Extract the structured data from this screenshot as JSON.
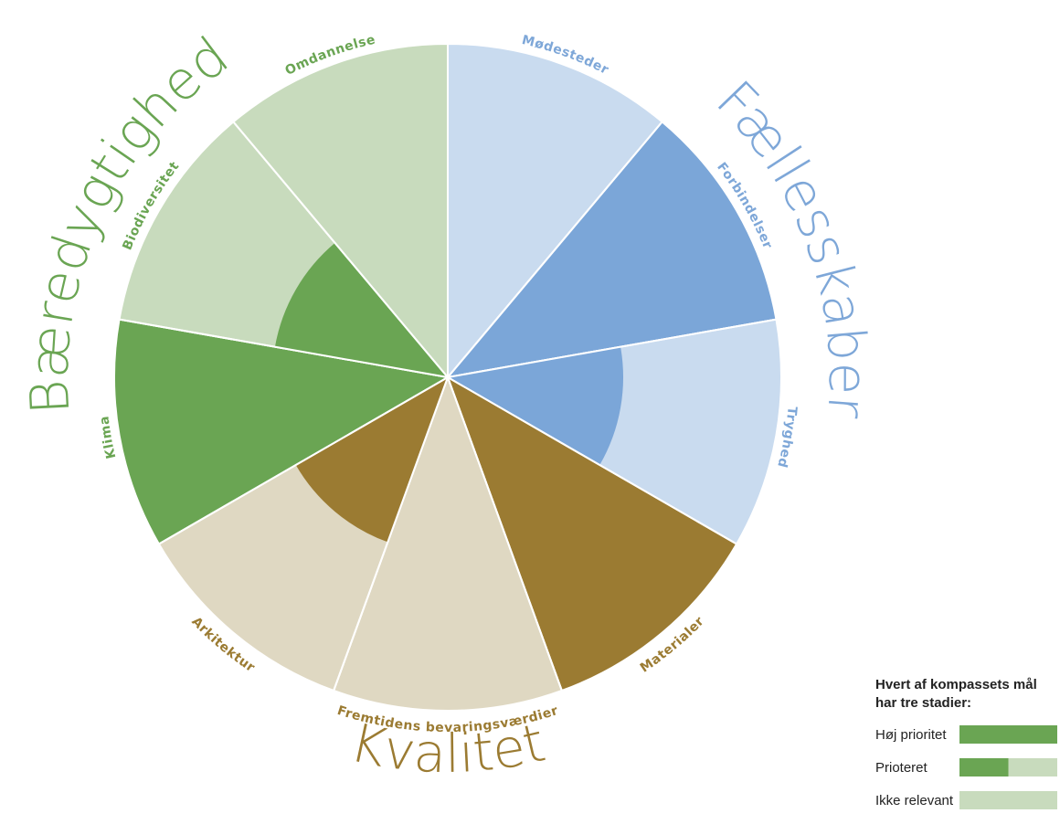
{
  "groups": [
    {
      "name": "Fællesskaber",
      "color": "#7ea7d8"
    },
    {
      "name": "Kvalitet",
      "color": "#9b7b32"
    },
    {
      "name": "Bæredygtighed",
      "color": "#6aa553"
    }
  ],
  "sectors": [
    {
      "label": "Mødesteder",
      "color": "#7ea7d8",
      "fill": "#c9dbef"
    },
    {
      "label": "Forbindelser",
      "color": "#7ea7d8",
      "fill": "#7ba6d8"
    },
    {
      "label": "Tryghed",
      "color": "#7ea7d8",
      "fill": "#c9dbef",
      "inner": "#7ba6d8"
    },
    {
      "label": "Materialer",
      "color": "#9b7b32",
      "fill": "#9b7b32"
    },
    {
      "label": "Fremtidens bevaringsværdier",
      "color": "#9b7b32",
      "fill": "#dfd8c2"
    },
    {
      "label": "Arkitektur",
      "color": "#9b7b32",
      "fill": "#dfd8c2",
      "inner": "#9b7b32"
    },
    {
      "label": "Klima",
      "color": "#6aa553",
      "fill": "#6aa553"
    },
    {
      "label": "Biodiversitet",
      "color": "#6aa553",
      "fill": "#c8dbbd",
      "inner": "#6aa553"
    },
    {
      "label": "Omdannelse",
      "color": "#6aa553",
      "fill": "#c8dbbd"
    }
  ],
  "legend": {
    "title": "Hvert af kompassets mål har tre stadier:",
    "items": [
      {
        "label": "Høj prioritet"
      },
      {
        "label": "Prioteret"
      },
      {
        "label": "Ikke relevant"
      }
    ]
  }
}
